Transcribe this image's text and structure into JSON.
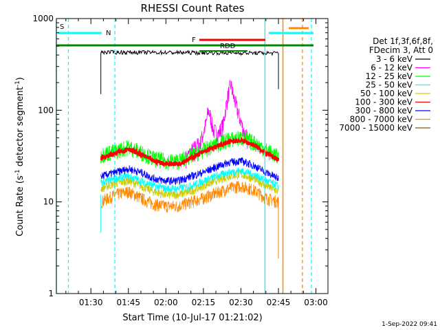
{
  "chart_data": {
    "type": "line",
    "title": "RHESSI Count Rates",
    "xlabel": "Start Time (10-Jul-17 01:21:02)",
    "ylabel_main": "Count Rate (s",
    "ylabel_exp1": "-1",
    "ylabel_mid": " detector segment",
    "ylabel_exp2": "-1",
    "ylabel_end": ")",
    "yscale": "log",
    "ylim": [
      1,
      1000
    ],
    "xlim_minutes": [
      1.27,
      3.08
    ],
    "x_tick_labels": [
      "01:30",
      "01:45",
      "02:00",
      "02:15",
      "02:30",
      "02:45",
      "03:00"
    ],
    "x_tick_minutes": [
      90,
      105,
      120,
      135,
      150,
      165,
      180
    ],
    "y_tick_labels": [
      "1",
      "10",
      "100",
      "1000"
    ],
    "y_tick_values": [
      1,
      10,
      100,
      1000
    ],
    "legend_header": [
      "Det 1f,3f,6f,8f,",
      "FDecim 3, Att 0"
    ],
    "legend_position": "right",
    "timestamp": "1-Sep-2022 09:41",
    "series": [
      {
        "name": "3 - 6 keV",
        "color": "#000000",
        "baseline": [
          [
            94,
            430
          ],
          [
            165,
            420
          ]
        ]
      },
      {
        "name": "6 - 12 keV",
        "color": "#ff00ff"
      },
      {
        "name": "12 - 25 keV",
        "color": "#00ff00"
      },
      {
        "name": "25 - 50 keV",
        "color": "#00ffff"
      },
      {
        "name": "50 - 100 keV",
        "color": "#cccc00"
      },
      {
        "name": "100 - 300 keV",
        "color": "#ff0000"
      },
      {
        "name": "300 - 800 keV",
        "color": "#0000ff"
      },
      {
        "name": "800 - 7000 keV",
        "color": "#ff8800"
      },
      {
        "name": "7000 - 15000 keV",
        "color": "#885500"
      }
    ],
    "envelopes": {
      "time_minutes": [
        94,
        100,
        105,
        110,
        115,
        120,
        125,
        130,
        135,
        140,
        145,
        150,
        155,
        160,
        165
      ],
      "12 - 25 keV": [
        33,
        36,
        40,
        35,
        30,
        28,
        28,
        32,
        37,
        42,
        48,
        50,
        45,
        37,
        31
      ],
      "100 - 300 keV": [
        30,
        34,
        38,
        33,
        28,
        26,
        26,
        30,
        35,
        40,
        45,
        47,
        42,
        34,
        29
      ],
      "300 - 800 keV": [
        19,
        21,
        23,
        21,
        18,
        17,
        17,
        19,
        21,
        24,
        27,
        28,
        25,
        21,
        18
      ],
      "25 - 50 keV": [
        16,
        18,
        19,
        17,
        15,
        14,
        14,
        15,
        17,
        19,
        21,
        22,
        20,
        17,
        15
      ],
      "50 - 100 keV": [
        14,
        16,
        17,
        15,
        13,
        12,
        12,
        13,
        15,
        17,
        19,
        20,
        18,
        15,
        13
      ],
      "800 - 7000 keV": [
        10,
        12,
        13,
        11,
        9.5,
        9,
        9,
        10,
        11,
        12.5,
        14,
        15,
        13.5,
        11,
        10
      ]
    },
    "flare_6_12": {
      "time_minutes": [
        128,
        134,
        136,
        137,
        138,
        139,
        141,
        143,
        145,
        146,
        147,
        149,
        151,
        153
      ],
      "values": [
        30,
        45,
        70,
        100,
        80,
        60,
        55,
        70,
        150,
        190,
        140,
        90,
        60,
        45
      ]
    },
    "markers": {
      "cyan_solid_minutes": [
        1.27,
        2.66
      ],
      "cyan_dashed_minutes": [
        1.35,
        1.66,
        2.97
      ],
      "orange_solid_minutes": [
        2.78
      ],
      "orange_dashed_minutes": [
        2.91
      ]
    },
    "flags": [
      {
        "label": "S",
        "color": "#ff8800"
      },
      {
        "label": "N",
        "color": "#00ffff"
      },
      {
        "label": "F",
        "color": "#ff0000"
      },
      {
        "label": "RDD",
        "color": "#000000"
      }
    ]
  }
}
